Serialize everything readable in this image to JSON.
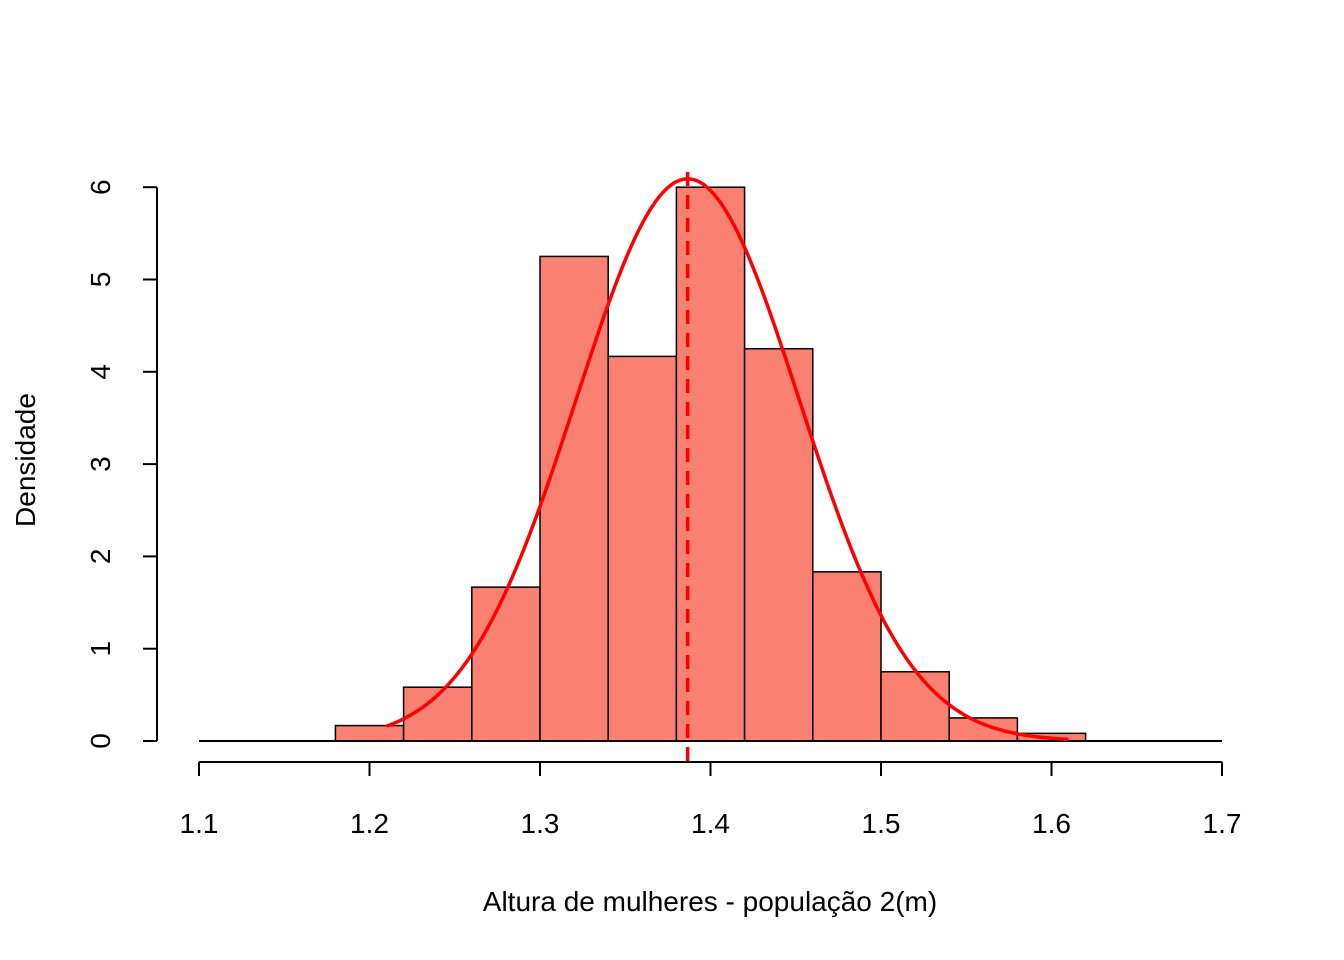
{
  "chart_data": {
    "type": "bar",
    "subtype": "histogram",
    "title": "",
    "xlabel": "Altura de mulheres - população 2(m)",
    "ylabel": "Densidade",
    "xlim": [
      1.1,
      1.7
    ],
    "ylim": [
      0,
      6.2
    ],
    "x_ticks": [
      "1.1",
      "1.2",
      "1.3",
      "1.4",
      "1.5",
      "1.6",
      "1.7"
    ],
    "y_ticks": [
      "0",
      "1",
      "2",
      "3",
      "4",
      "5",
      "6"
    ],
    "bins": [
      {
        "start": 1.18,
        "end": 1.22,
        "density": 0.167
      },
      {
        "start": 1.22,
        "end": 1.26,
        "density": 0.583
      },
      {
        "start": 1.26,
        "end": 1.3,
        "density": 1.667
      },
      {
        "start": 1.3,
        "end": 1.34,
        "density": 5.25
      },
      {
        "start": 1.34,
        "end": 1.38,
        "density": 4.167
      },
      {
        "start": 1.38,
        "end": 1.42,
        "density": 6.0
      },
      {
        "start": 1.42,
        "end": 1.46,
        "density": 4.25
      },
      {
        "start": 1.46,
        "end": 1.5,
        "density": 1.833
      },
      {
        "start": 1.5,
        "end": 1.54,
        "density": 0.75
      },
      {
        "start": 1.54,
        "end": 1.58,
        "density": 0.25
      },
      {
        "start": 1.58,
        "end": 1.62,
        "density": 0.083
      }
    ],
    "baseline": [
      1.1,
      1.7
    ],
    "density_curve": {
      "mean": 1.3866,
      "sd": 0.0655,
      "x_range": [
        1.21,
        1.61
      ]
    },
    "mean_line": 1.3866,
    "grid": false,
    "legend": "none",
    "colors": {
      "bar_fill": "#FA8072",
      "bar_stroke": "#000000",
      "curve": "#FF0000",
      "mean_line": "#FF0000"
    }
  }
}
